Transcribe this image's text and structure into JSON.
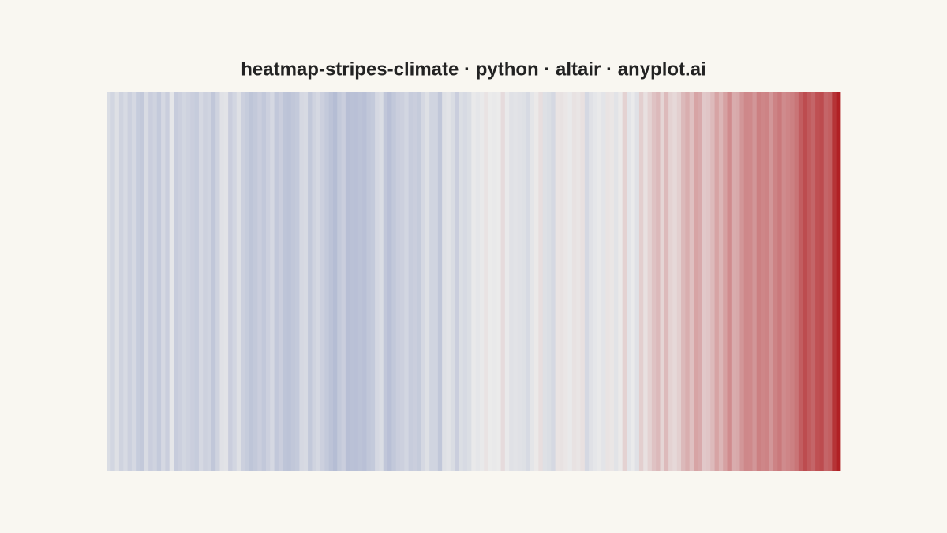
{
  "chart_data": {
    "type": "stripes",
    "title": "heatmap-stripes-climate · python · altair · anyplot.ai",
    "values": [
      -0.15,
      -0.22,
      -0.12,
      -0.25,
      -0.18,
      -0.28,
      -0.2,
      -0.33,
      -0.36,
      -0.17,
      -0.3,
      -0.25,
      -0.35,
      -0.2,
      -0.3,
      -0.05,
      -0.32,
      -0.28,
      -0.22,
      -0.26,
      -0.3,
      -0.33,
      -0.2,
      -0.27,
      -0.24,
      -0.38,
      -0.25,
      -0.1,
      -0.08,
      -0.3,
      -0.22,
      -0.12,
      -0.28,
      -0.33,
      -0.4,
      -0.36,
      -0.3,
      -0.37,
      -0.28,
      -0.2,
      -0.37,
      -0.3,
      -0.4,
      -0.42,
      -0.38,
      -0.35,
      -0.2,
      -0.18,
      -0.36,
      -0.25,
      -0.2,
      -0.28,
      -0.35,
      -0.42,
      -0.48,
      -0.36,
      -0.3,
      -0.46,
      -0.44,
      -0.45,
      -0.42,
      -0.45,
      -0.38,
      -0.35,
      -0.2,
      -0.15,
      -0.38,
      -0.45,
      -0.37,
      -0.3,
      -0.28,
      -0.22,
      -0.32,
      -0.3,
      -0.34,
      -0.2,
      -0.12,
      -0.24,
      -0.24,
      -0.38,
      -0.12,
      -0.08,
      -0.16,
      -0.3,
      -0.14,
      -0.18,
      -0.14,
      -0.02,
      -0.05,
      -0.02,
      0.05,
      0.0,
      -0.02,
      0.0,
      0.1,
      -0.02,
      -0.1,
      -0.08,
      -0.1,
      -0.12,
      -0.18,
      -0.06,
      0.01,
      0.08,
      -0.12,
      -0.14,
      -0.2,
      0.05,
      0.06,
      0.03,
      -0.02,
      0.06,
      0.04,
      0.07,
      -0.2,
      -0.1,
      -0.05,
      -0.02,
      -0.07,
      0.05,
      0.03,
      -0.08,
      0.01,
      0.16,
      -0.07,
      -0.01,
      -0.1,
      0.18,
      0.07,
      0.16,
      0.26,
      0.32,
      0.14,
      0.31,
      0.16,
      0.12,
      0.18,
      0.32,
      0.39,
      0.27,
      0.45,
      0.41,
      0.22,
      0.24,
      0.31,
      0.45,
      0.34,
      0.47,
      0.6,
      0.4,
      0.42,
      0.54,
      0.63,
      0.62,
      0.54,
      0.68,
      0.64,
      0.66,
      0.54,
      0.66,
      0.72,
      0.61,
      0.65,
      0.68,
      0.75,
      0.9,
      1.01,
      0.92,
      0.85,
      0.98,
      1.01,
      0.85,
      0.89,
      1.17,
      1.29
    ],
    "color_domain": [
      -1.3,
      0,
      1.3
    ],
    "color_range": [
      "#5a6fae",
      "#ebebeb",
      "#b01e22"
    ]
  }
}
